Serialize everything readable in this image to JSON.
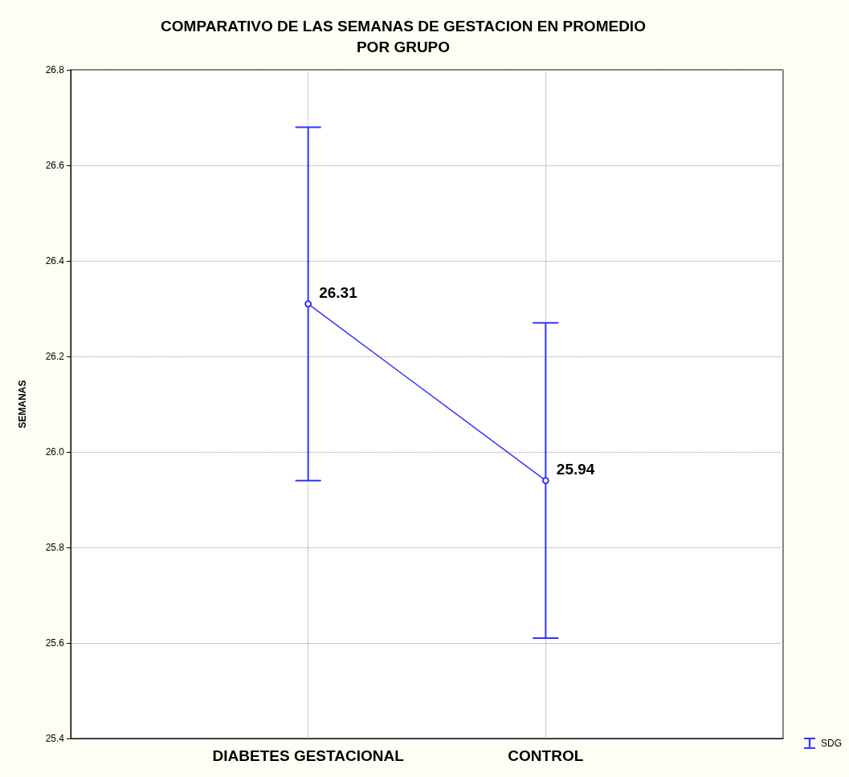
{
  "chart_data": {
    "type": "line",
    "title": "COMPARATIVO DE LAS SEMANAS DE GESTACION EN PROMEDIO\nPOR GRUPO",
    "ylabel": "SEMANAS",
    "categories": [
      "DIABETES GESTACIONAL",
      "CONTROL"
    ],
    "series": [
      {
        "name": "SDG",
        "color": "#3333ff",
        "values": [
          26.31,
          25.94
        ],
        "errors": [
          0.37,
          0.33
        ]
      }
    ],
    "ylim": [
      25.4,
      26.8
    ],
    "yticks": [
      25.4,
      25.6,
      25.8,
      {
        "value": 26,
        "label": "26.0"
      },
      26.2,
      26.4,
      26.6,
      26.8
    ],
    "grid": true,
    "legend": "bottom right",
    "marker": "circle",
    "line_style": "solid",
    "data_labels": true
  }
}
